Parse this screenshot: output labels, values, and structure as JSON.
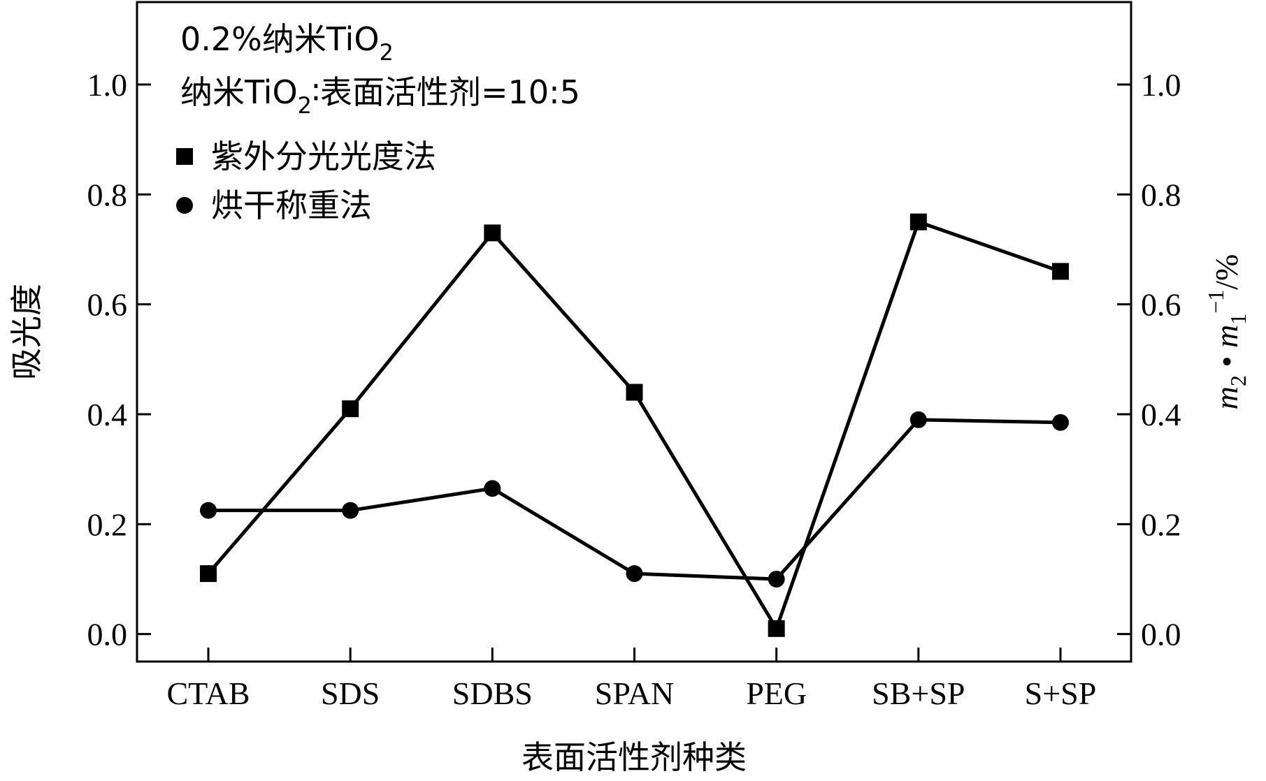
{
  "chart_data": {
    "type": "line",
    "categories": [
      "CTAB",
      "SDS",
      "SDBS",
      "SPAN",
      "PEG",
      "SB+SP",
      "S+SP"
    ],
    "series": [
      {
        "name": "紫外分光光度法",
        "marker": "square",
        "axis": "left",
        "values": [
          0.11,
          0.41,
          0.73,
          0.44,
          0.01,
          0.75,
          0.66
        ]
      },
      {
        "name": "烘干称重法",
        "marker": "circle",
        "axis": "right",
        "values": [
          0.225,
          0.225,
          0.265,
          0.11,
          0.1,
          0.39,
          0.385
        ]
      }
    ],
    "xlabel": "表面活性剂种类",
    "ylabel": "吸光度",
    "y2label": {
      "m": "m",
      "sub2": "2",
      "dot": " • ",
      "sub1": "1",
      "sup": "−1",
      "unit": "/%"
    },
    "ylim": [
      -0.05,
      1.15
    ],
    "y2lim": [
      -0.05,
      1.15
    ],
    "yticks": [
      "0.0",
      "0.2",
      "0.4",
      "0.6",
      "0.8",
      "1.0"
    ],
    "y2ticks": [
      "0.0",
      "0.2",
      "0.4",
      "0.6",
      "0.8",
      "1.0"
    ],
    "annotations": {
      "line1_prefix": "0.2%纳米TiO",
      "line1_sub": "2",
      "line2_prefix": "纳米TiO",
      "line2_sub": "2",
      "line2_suffix": "∶表面活性剂=10:5"
    },
    "legend_position": "top-left",
    "grid": false,
    "line_color": "#000000"
  }
}
